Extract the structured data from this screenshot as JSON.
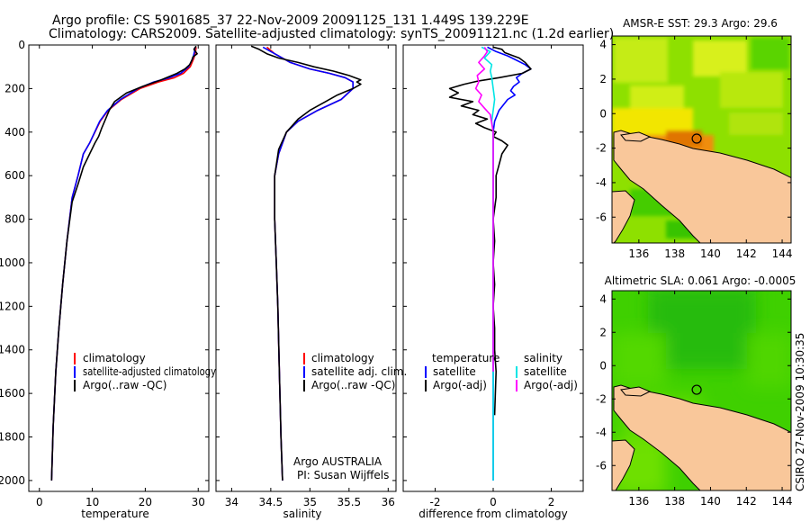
{
  "header": {
    "line1": "Argo profile: CS 5901685_37 22-Nov-2009 20091125_131 1.449S 139.229E",
    "line2": "Climatology: CARS2009. Satellite-adjusted climatology: synTS_20091121.nc (1.2d earlier)"
  },
  "footer": {
    "stamp": "CSIRO 27-Nov-2009 10:30:35",
    "argo_label": "Argo AUSTRALIA",
    "pi_label": "PI: Susan Wijffels"
  },
  "colors": {
    "climatology": "#ff0000",
    "satellite": "#0000ff",
    "argo": "#000000",
    "sat_diff": "#00e5e5",
    "argo_sal_diff": "#ff00ff",
    "land": "#f9c79a",
    "coast": "#000000"
  },
  "chart_data": [
    {
      "type": "line",
      "id": "temperature",
      "xlabel": "temperature",
      "ylabel": "",
      "xlim": [
        -2,
        32
      ],
      "ylim": [
        2050,
        0
      ],
      "xticks": [
        0,
        10,
        20,
        30
      ],
      "yticks": [
        0,
        200,
        400,
        600,
        800,
        1000,
        1200,
        1400,
        1600,
        1800,
        2000
      ],
      "legend": [
        "climatology",
        "satellite-adjusted climatology",
        "Argo(..raw -QC)"
      ],
      "series": [
        {
          "name": "climatology",
          "color": "#ff0000",
          "x": [
            29.6,
            29.5,
            29.2,
            28.5,
            27.2,
            25.5,
            22.5,
            19.0,
            15.5,
            13.0,
            11.5,
            9.5,
            8.3,
            7.3,
            6.2,
            5.2,
            4.4,
            3.7,
            3.1,
            2.6,
            2.3
          ],
          "y": [
            10,
            30,
            60,
            100,
            130,
            150,
            170,
            200,
            250,
            300,
            350,
            450,
            500,
            600,
            700,
            900,
            1100,
            1300,
            1500,
            1750,
            2000
          ]
        },
        {
          "name": "satellite-adjusted climatology",
          "color": "#0000ff",
          "x": [
            29.4,
            29.3,
            29.0,
            28.2,
            26.7,
            24.6,
            21.6,
            18.6,
            15.3,
            12.9,
            11.4,
            9.5,
            8.3,
            7.3,
            6.2,
            5.2,
            4.4,
            3.7,
            3.1,
            2.6,
            2.3
          ],
          "y": [
            10,
            30,
            60,
            100,
            130,
            150,
            170,
            200,
            250,
            300,
            350,
            450,
            500,
            600,
            700,
            900,
            1100,
            1300,
            1500,
            1750,
            2000
          ]
        },
        {
          "name": "Argo(..raw -QC)",
          "color": "#000000",
          "x": [
            29.6,
            29.2,
            29.8,
            29.0,
            28.8,
            28.4,
            27.5,
            26.0,
            23.0,
            19.5,
            16.5,
            14.2,
            13.2,
            12.5,
            11.8,
            11.2,
            10.5,
            9.5,
            8.3,
            7.3,
            6.2,
            5.2,
            4.4,
            3.7,
            3.1,
            2.6,
            2.3
          ],
          "y": [
            5,
            20,
            40,
            55,
            70,
            90,
            110,
            130,
            160,
            190,
            220,
            260,
            300,
            340,
            380,
            420,
            450,
            500,
            560,
            640,
            720,
            900,
            1100,
            1300,
            1500,
            1750,
            2000
          ]
        }
      ]
    },
    {
      "type": "line",
      "id": "salinity",
      "xlabel": "salinity",
      "ylabel": "",
      "xlim": [
        33.8,
        36.1
      ],
      "ylim": [
        2050,
        0
      ],
      "xticks": [
        34,
        34.5,
        35,
        35.5,
        36
      ],
      "xtick_labels": [
        "34",
        "34.5",
        "35",
        "35.5",
        "36"
      ],
      "legend": [
        "climatology",
        "satellite adj. clim.",
        "Argo(..raw -QC)"
      ],
      "series": [
        {
          "name": "climatology",
          "color": "#ff0000",
          "x": [
            34.45,
            34.55,
            34.75,
            35.0,
            35.25,
            35.45,
            35.55,
            35.55,
            35.4,
            35.1,
            34.85,
            34.7,
            34.6,
            34.55,
            34.55,
            34.57,
            34.59,
            34.61,
            34.63,
            34.65
          ],
          "y": [
            10,
            40,
            80,
            110,
            130,
            150,
            170,
            200,
            250,
            300,
            350,
            400,
            500,
            600,
            800,
            1000,
            1200,
            1500,
            1800,
            2000
          ]
        },
        {
          "name": "satellite adj. clim.",
          "color": "#0000ff",
          "x": [
            34.4,
            34.55,
            34.75,
            35.0,
            35.25,
            35.45,
            35.55,
            35.55,
            35.4,
            35.1,
            34.85,
            34.7,
            34.6,
            34.55,
            34.55,
            34.57,
            34.59,
            34.61,
            34.63,
            34.65
          ],
          "y": [
            10,
            40,
            80,
            110,
            130,
            150,
            170,
            200,
            250,
            300,
            350,
            400,
            500,
            600,
            800,
            1000,
            1200,
            1500,
            1800,
            2000
          ]
        },
        {
          "name": "Argo(..raw -QC)",
          "color": "#000000",
          "x": [
            34.25,
            34.35,
            34.45,
            34.6,
            34.85,
            35.05,
            35.3,
            35.5,
            35.65,
            35.6,
            35.65,
            35.55,
            35.35,
            35.2,
            35.0,
            34.85,
            34.7,
            34.6,
            34.55,
            34.55,
            34.57,
            34.59,
            34.61,
            34.63,
            34.65
          ],
          "y": [
            5,
            20,
            40,
            60,
            80,
            100,
            120,
            140,
            160,
            170,
            180,
            200,
            230,
            260,
            300,
            340,
            400,
            480,
            600,
            800,
            1000,
            1200,
            1500,
            1800,
            2000
          ]
        }
      ]
    },
    {
      "type": "line",
      "id": "difference",
      "xlabel": "difference from climatology",
      "ylabel": "",
      "xlim": [
        -3.1,
        3.1
      ],
      "ylim": [
        2050,
        0
      ],
      "xticks": [
        -2,
        0,
        2
      ],
      "legend_temperature": {
        "title": "temperature",
        "entries": [
          "satellite",
          "Argo(-adj)"
        ]
      },
      "legend_salinity": {
        "title": "salinity",
        "entries": [
          "satellite",
          "Argo(-adj)"
        ]
      },
      "series": [
        {
          "name": "temperature satellite",
          "color": "#0000ff",
          "x": [
            -0.2,
            0.1,
            0.5,
            0.8,
            1.1,
            1.3,
            1.0,
            0.8,
            0.9,
            0.7,
            0.6,
            0.75,
            0.5,
            0.2,
            0.05,
            0.0,
            0.0,
            0.0,
            0.0,
            0.0
          ],
          "y": [
            10,
            30,
            50,
            70,
            90,
            110,
            130,
            150,
            170,
            190,
            210,
            230,
            250,
            300,
            350,
            400,
            600,
            1000,
            1500,
            2000
          ]
        },
        {
          "name": "temperature Argo(-adj)",
          "color": "#000000",
          "x": [
            0.0,
            0.3,
            0.4,
            0.7,
            0.9,
            1.1,
            1.3,
            1.0,
            0.2,
            -0.5,
            -1.0,
            -1.5,
            -1.2,
            -1.5,
            -0.7,
            -1.1,
            -0.5,
            -0.7,
            -0.2,
            -0.6,
            -0.3,
            0.1,
            0.0,
            0.3,
            0.5,
            0.3,
            0.2,
            0.1,
            0.1,
            0.0,
            0.05,
            0.0,
            0.05,
            0.0,
            0.05,
            0.05,
            0.1,
            0.05
          ],
          "y": [
            10,
            20,
            35,
            50,
            60,
            80,
            110,
            130,
            150,
            165,
            180,
            200,
            220,
            240,
            260,
            280,
            300,
            320,
            340,
            360,
            380,
            400,
            420,
            440,
            460,
            500,
            550,
            600,
            700,
            800,
            900,
            1000,
            1100,
            1200,
            1300,
            1400,
            1500,
            1700
          ]
        },
        {
          "name": "salinity satellite",
          "color": "#00e5e5",
          "x": [
            -0.4,
            -0.1,
            -0.3,
            -0.05,
            -0.1,
            -0.05,
            0.0,
            0.05,
            0.0,
            -0.05,
            0.0,
            0.0,
            0.0,
            0.0,
            0.0
          ],
          "y": [
            10,
            30,
            60,
            90,
            120,
            150,
            200,
            250,
            300,
            350,
            400,
            600,
            1000,
            1500,
            2000
          ]
        },
        {
          "name": "salinity Argo(-adj)",
          "color": "#ff00ff",
          "x": [
            -0.3,
            -0.2,
            -0.3,
            -0.5,
            -0.3,
            -0.55,
            -0.5,
            -0.6,
            -0.4,
            -0.5,
            -0.3,
            -0.1,
            0.0,
            0.0,
            0.0,
            0.0
          ],
          "y": [
            10,
            30,
            50,
            80,
            110,
            140,
            170,
            200,
            230,
            260,
            290,
            320,
            400,
            600,
            1000,
            1500
          ]
        }
      ]
    },
    {
      "type": "heatmap",
      "id": "sst_map",
      "title": "AMSR-E SST: 29.3  Argo: 29.6",
      "xlim": [
        134.5,
        144.5
      ],
      "ylim": [
        -7.5,
        4.5
      ],
      "xticks": [
        136,
        138,
        140,
        142,
        144
      ],
      "yticks": [
        4,
        2,
        0,
        -2,
        -4,
        -6
      ],
      "marker": {
        "lon": 139.229,
        "lat": -1.449
      }
    },
    {
      "type": "heatmap",
      "id": "sla_map",
      "title": "Altimetric SLA: 0.061  Argo: -0.0005",
      "xlim": [
        134.5,
        144.5
      ],
      "ylim": [
        -7.5,
        4.5
      ],
      "xticks": [
        136,
        138,
        140,
        142,
        144
      ],
      "yticks": [
        4,
        2,
        0,
        -2,
        -4,
        -6
      ],
      "marker": {
        "lon": 139.229,
        "lat": -1.449
      }
    }
  ]
}
